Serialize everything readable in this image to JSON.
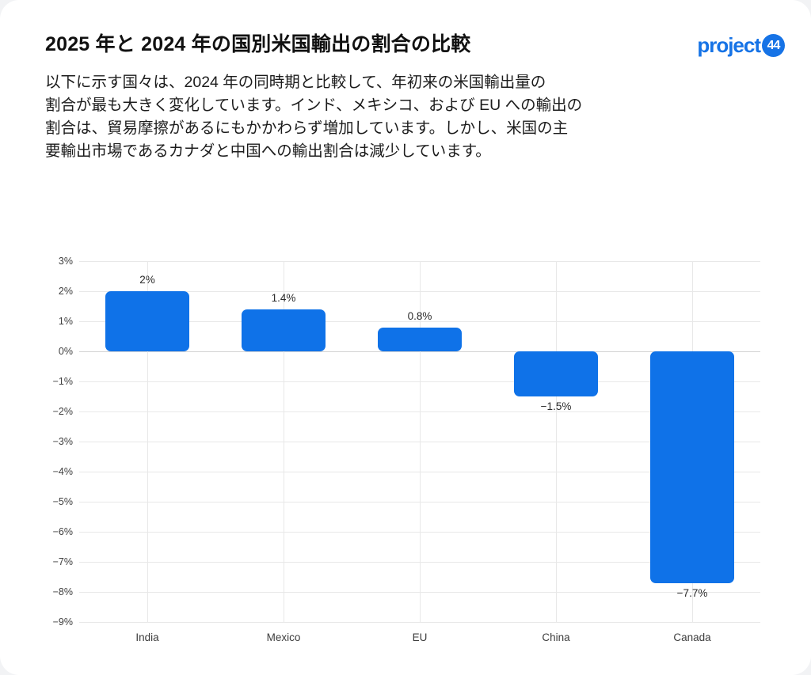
{
  "header": {
    "title": "2025 年と 2024 年の国別米国輸出の割合の比較",
    "description": "以下に示す国々は、2024 年の同時期と比較して、年初来の米国輸出量の\n割合が最も大きく変化しています。インド、メキシコ、および EU への輸出の\n割合は、貿易摩擦があるにもかかわらず増加しています。しかし、米国の主\n要輸出市場であるカナダと中国への輸出割合は減少しています。"
  },
  "logo": {
    "text": "project",
    "badge": "44",
    "color": "#1673E6"
  },
  "chart_data": {
    "type": "bar",
    "title": "",
    "xlabel": "",
    "ylabel": "",
    "categories": [
      "India",
      "Mexico",
      "EU",
      "China",
      "Canada"
    ],
    "values": [
      2,
      1.4,
      0.8,
      -1.5,
      -7.7
    ],
    "value_labels": [
      "2%",
      "1.4%",
      "0.8%",
      "−1.5%",
      "−7.7%"
    ],
    "ylim": [
      -9,
      3
    ],
    "y_tick_values": [
      3,
      2,
      1,
      0,
      -1,
      -2,
      -3,
      -4,
      -5,
      -6,
      -7,
      -8,
      -9
    ],
    "y_tick_labels": [
      "3%",
      "2%",
      "1%",
      "0%",
      "−1%",
      "−2%",
      "−3%",
      "−4%",
      "−5%",
      "−6%",
      "−7%",
      "−8%",
      "−9%"
    ],
    "grid": "on",
    "legend": "none",
    "bar_color": "#0F72E8",
    "grid_color": "#e8e8e8",
    "zero_line_color": "#d2d2d2"
  }
}
